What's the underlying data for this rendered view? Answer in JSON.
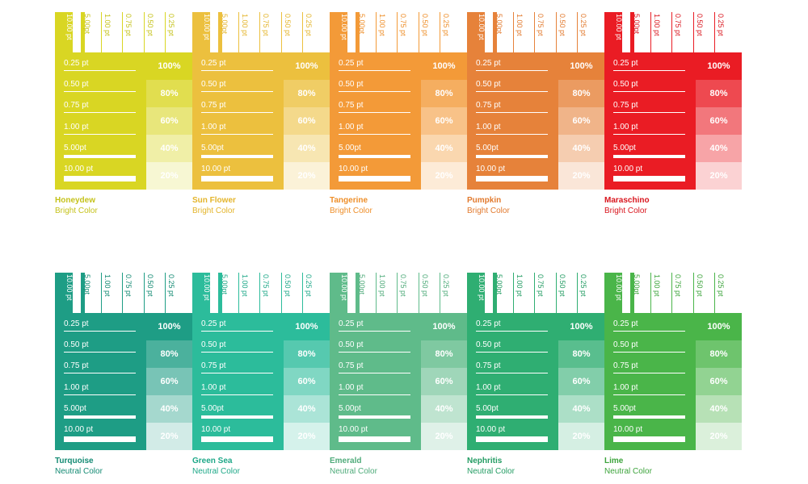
{
  "stroke_weights": [
    "10.00 pt",
    "5.00pt",
    "1.00 pt",
    "0.75 pt",
    "0.50 pt",
    "0.25 pt"
  ],
  "row_labels": [
    "0.25 pt",
    "0.50 pt",
    "0.75 pt",
    "1.00 pt",
    "5.00pt",
    "10.00 pt"
  ],
  "tints": [
    "100%",
    "80%",
    "60%",
    "40%",
    "20%"
  ],
  "tint_levels": [
    1.0,
    0.8,
    0.6,
    0.4,
    0.2
  ],
  "swatches": [
    {
      "name": "Honeydew",
      "category": "Bright Color",
      "color": "#d9d623",
      "label_color": "#c5c21b"
    },
    {
      "name": "Sun Flower",
      "category": "Bright Color",
      "color": "#ecc03e",
      "label_color": "#e4b52c"
    },
    {
      "name": "Tangerine",
      "category": "Bright Color",
      "color": "#f39a38",
      "label_color": "#ee8f2a"
    },
    {
      "name": "Pumpkin",
      "category": "Bright Color",
      "color": "#e6823a",
      "label_color": "#e27a2e"
    },
    {
      "name": "Maraschino",
      "category": "Bright Color",
      "color": "#ea1c24",
      "label_color": "#d9161e"
    },
    {
      "name": "Turquoise",
      "category": "Neutral Color",
      "color": "#1e9d85",
      "label_color": "#138a73"
    },
    {
      "name": "Green Sea",
      "category": "Neutral Color",
      "color": "#2cbc9b",
      "label_color": "#1ea888"
    },
    {
      "name": "Emerald",
      "category": "Neutral Color",
      "color": "#5fbb8a",
      "label_color": "#4fab7a"
    },
    {
      "name": "Nephritis",
      "category": "Neutral Color",
      "color": "#2fae72",
      "label_color": "#239c63"
    },
    {
      "name": "Lime",
      "category": "Neutral Color",
      "color": "#4ab549",
      "label_color": "#3da43c"
    }
  ]
}
